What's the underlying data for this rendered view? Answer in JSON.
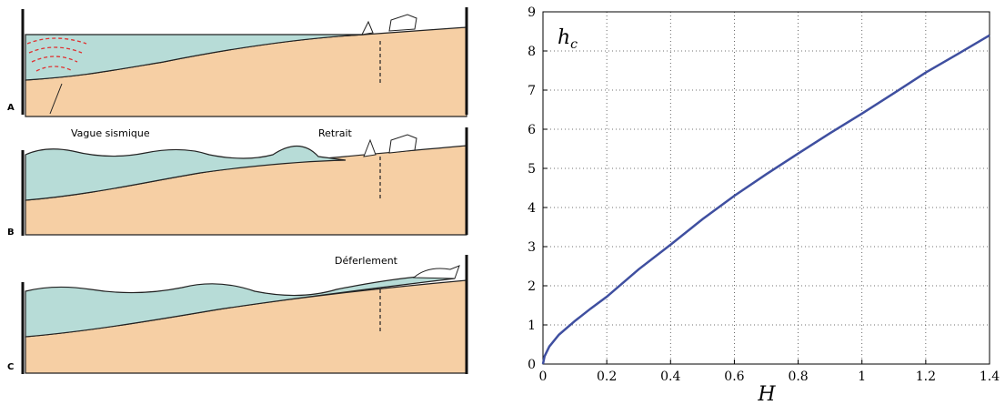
{
  "diagram": {
    "panels": [
      {
        "letter": "A"
      },
      {
        "letter": "B",
        "labels": [
          "Vague sismique",
          "Retrait"
        ]
      },
      {
        "letter": "C",
        "labels": [
          "Déferlement"
        ]
      }
    ]
  },
  "chart_data": {
    "type": "line",
    "ylabel": [
      "h",
      "c"
    ],
    "xlabel": "H",
    "x": [
      0,
      0.005,
      0.02,
      0.05,
      0.1,
      0.15,
      0.2,
      0.3,
      0.4,
      0.5,
      0.6,
      0.7,
      0.8,
      0.9,
      1.0,
      1.1,
      1.2,
      1.3,
      1.4
    ],
    "series": [
      {
        "color": "#3f4fa0",
        "values": [
          0,
          0.2,
          0.45,
          0.75,
          1.1,
          1.42,
          1.72,
          2.42,
          3.05,
          3.7,
          4.3,
          4.85,
          5.38,
          5.9,
          6.4,
          6.92,
          7.45,
          7.92,
          8.4
        ]
      }
    ],
    "xlim": [
      0,
      1.4
    ],
    "ylim": [
      0,
      9
    ],
    "xticks": [
      0,
      0.2,
      0.4,
      0.6,
      0.8,
      1,
      1.2,
      1.4
    ],
    "yticks": [
      0,
      1,
      2,
      3,
      4,
      5,
      6,
      7,
      8,
      9
    ],
    "grid": true
  }
}
